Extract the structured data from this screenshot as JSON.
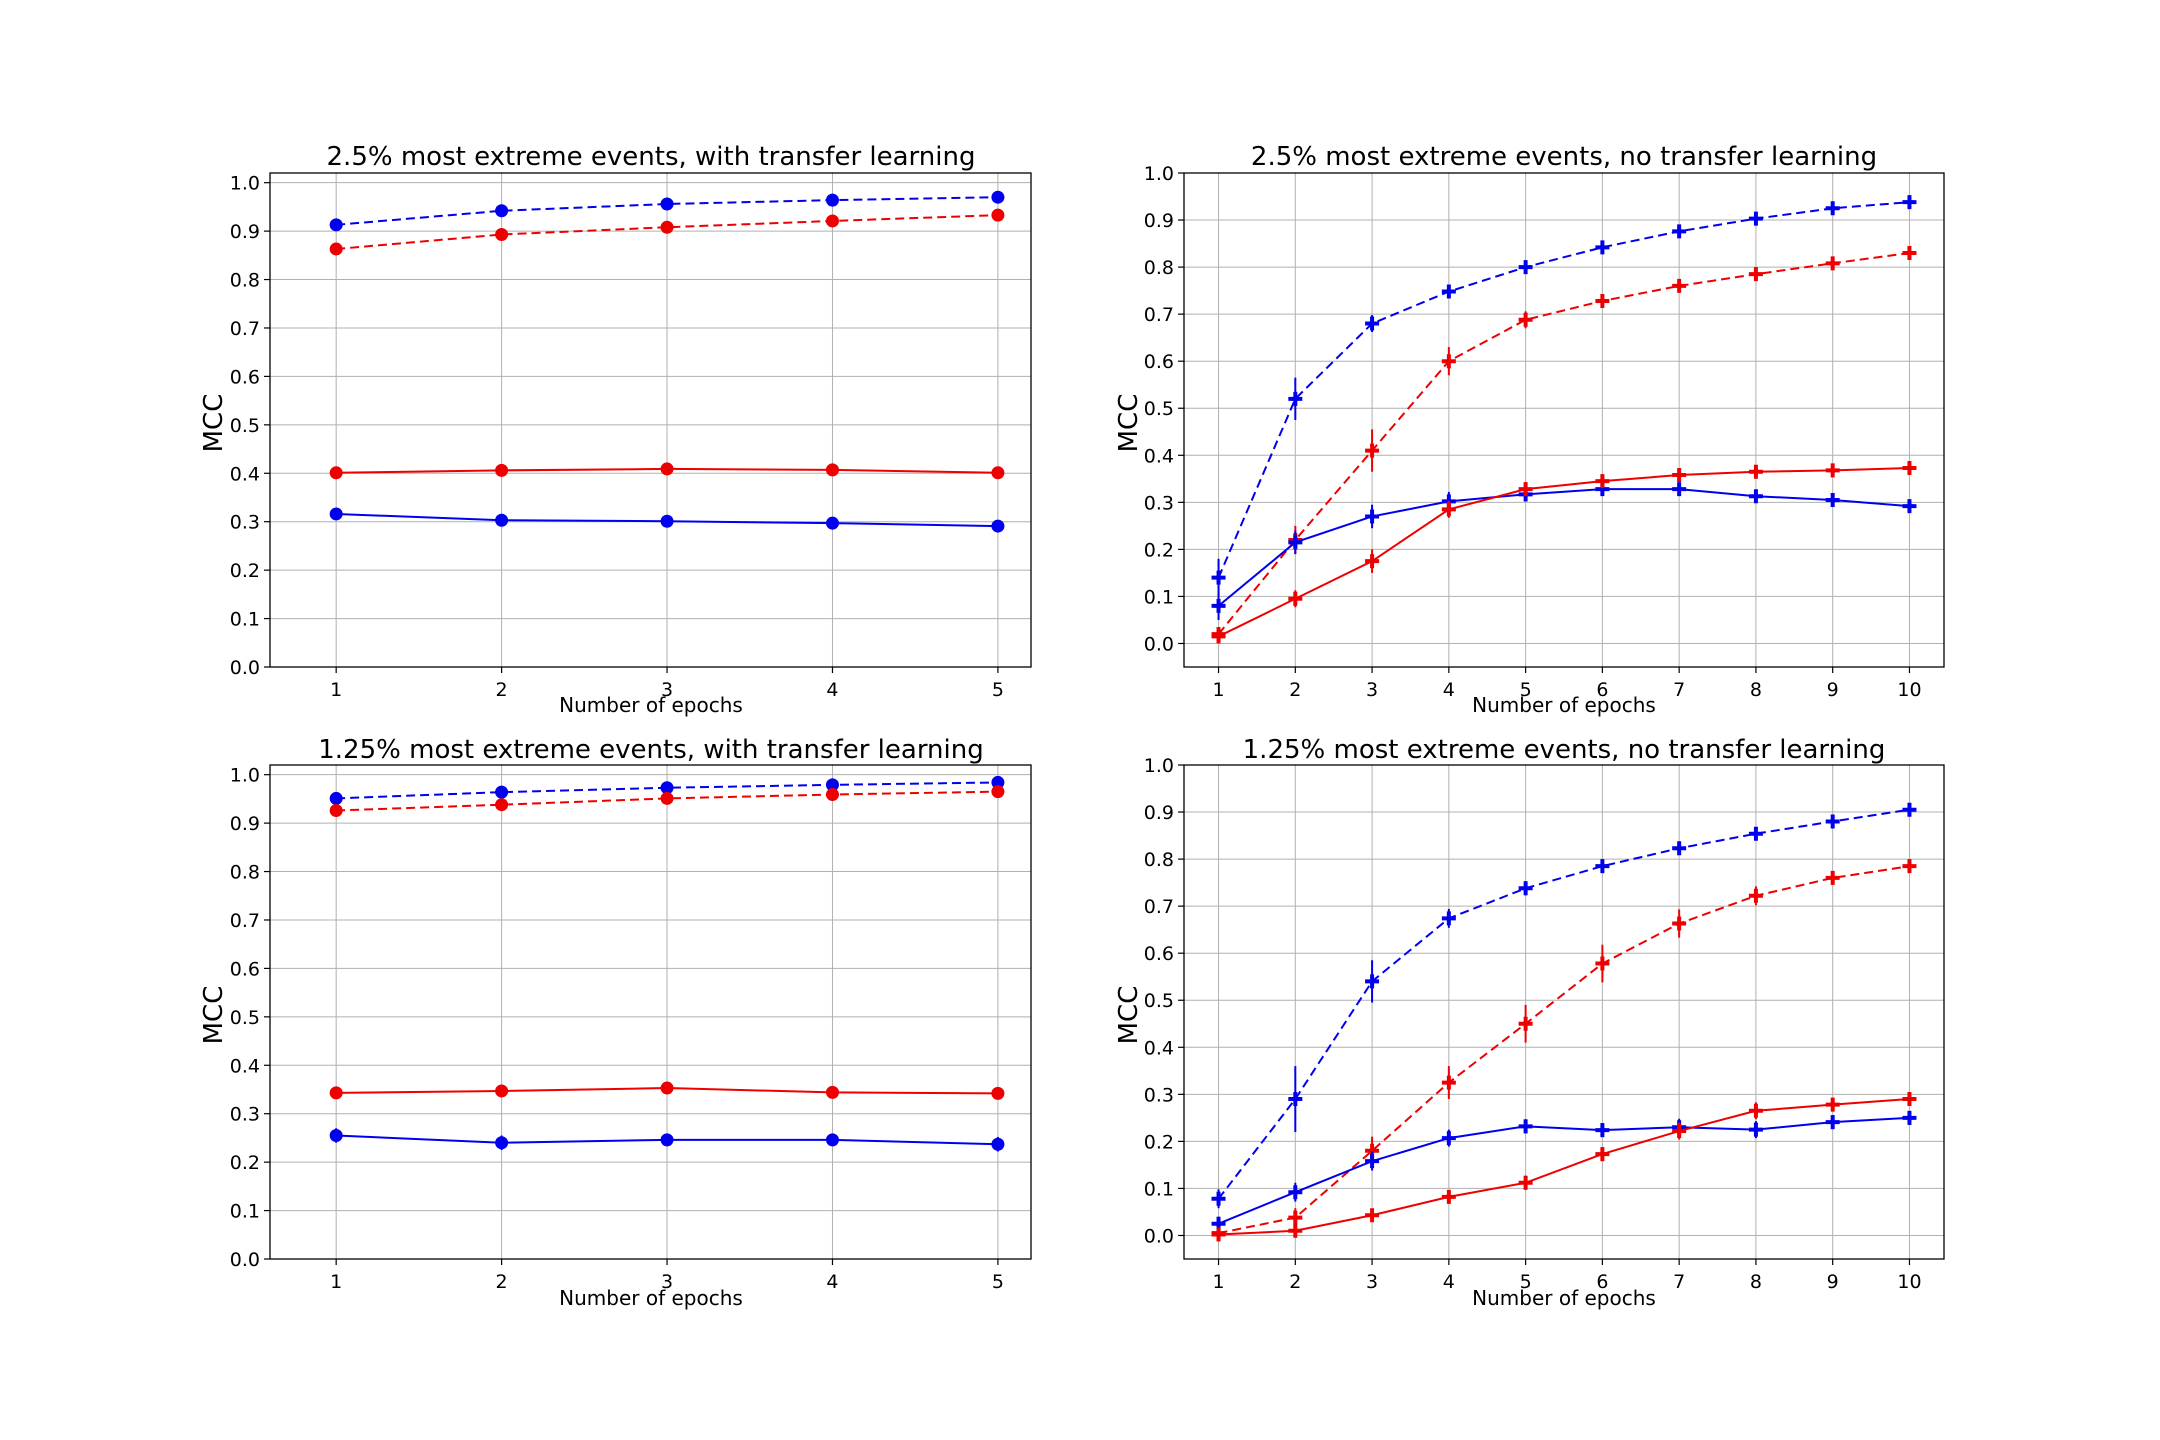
{
  "colors": {
    "series_a": "#0000ee",
    "series_b": "#ee0000",
    "grid": "#b0b0b0",
    "frame": "#000000"
  },
  "chart_data": [
    {
      "type": "line",
      "title": "2.5% most extreme events, with transfer learning",
      "xlabel": "Number of epochs",
      "ylabel": "MCC",
      "x": [
        1,
        2,
        3,
        4,
        5
      ],
      "xlim": [
        0.6,
        5.2
      ],
      "ylim": [
        0.0,
        1.02
      ],
      "yticks": [
        "0.0",
        "0.1",
        "0.2",
        "0.3",
        "0.4",
        "0.5",
        "0.6",
        "0.7",
        "0.8",
        "0.9",
        "1.0"
      ],
      "marker": "circle",
      "grid": true,
      "series": [
        {
          "name": "blue dashed",
          "color": "blue",
          "dash": true,
          "values": [
            0.913,
            0.942,
            0.956,
            0.964,
            0.97
          ],
          "err": [
            0.005,
            0.005,
            0.004,
            0.004,
            0.004
          ]
        },
        {
          "name": "red dashed",
          "color": "red",
          "dash": true,
          "values": [
            0.863,
            0.893,
            0.908,
            0.921,
            0.933
          ],
          "err": [
            0.005,
            0.005,
            0.005,
            0.004,
            0.004
          ]
        },
        {
          "name": "red solid",
          "color": "red",
          "dash": false,
          "values": [
            0.401,
            0.406,
            0.409,
            0.407,
            0.401
          ],
          "err": [
            0.006,
            0.006,
            0.006,
            0.006,
            0.006
          ]
        },
        {
          "name": "blue solid",
          "color": "blue",
          "dash": false,
          "values": [
            0.316,
            0.303,
            0.301,
            0.297,
            0.291
          ],
          "err": [
            0.007,
            0.007,
            0.007,
            0.007,
            0.007
          ]
        }
      ]
    },
    {
      "type": "line",
      "title": "2.5% most extreme events, no transfer learning",
      "xlabel": "Number of epochs",
      "ylabel": "MCC",
      "x": [
        1,
        2,
        3,
        4,
        5,
        6,
        7,
        8,
        9,
        10
      ],
      "xlim": [
        0.55,
        10.45
      ],
      "ylim": [
        -0.05,
        1.0
      ],
      "yticks": [
        "0.0",
        "0.1",
        "0.2",
        "0.3",
        "0.4",
        "0.5",
        "0.6",
        "0.7",
        "0.8",
        "0.9",
        "1.0"
      ],
      "marker": "plus",
      "grid": true,
      "series": [
        {
          "name": "blue dashed",
          "color": "blue",
          "dash": true,
          "values": [
            0.14,
            0.52,
            0.68,
            0.748,
            0.8,
            0.842,
            0.876,
            0.903,
            0.925,
            0.938
          ],
          "err": [
            0.04,
            0.045,
            0.018,
            0.012,
            0.01,
            0.008,
            0.008,
            0.007,
            0.006,
            0.006
          ]
        },
        {
          "name": "red dashed",
          "color": "red",
          "dash": true,
          "values": [
            0.02,
            0.22,
            0.41,
            0.6,
            0.688,
            0.728,
            0.76,
            0.785,
            0.808,
            0.83
          ],
          "err": [
            0.015,
            0.03,
            0.045,
            0.03,
            0.018,
            0.012,
            0.01,
            0.01,
            0.008,
            0.008
          ]
        },
        {
          "name": "blue solid",
          "color": "blue",
          "dash": false,
          "values": [
            0.08,
            0.215,
            0.27,
            0.302,
            0.317,
            0.328,
            0.328,
            0.313,
            0.305,
            0.292
          ],
          "err": [
            0.03,
            0.025,
            0.025,
            0.02,
            0.015,
            0.012,
            0.012,
            0.012,
            0.01,
            0.01
          ]
        },
        {
          "name": "red solid",
          "color": "red",
          "dash": false,
          "values": [
            0.015,
            0.095,
            0.175,
            0.285,
            0.328,
            0.345,
            0.358,
            0.365,
            0.368,
            0.373
          ],
          "err": [
            0.012,
            0.018,
            0.025,
            0.018,
            0.012,
            0.01,
            0.01,
            0.01,
            0.01,
            0.01
          ]
        }
      ]
    },
    {
      "type": "line",
      "title": "1.25% most extreme events, with transfer learning",
      "xlabel": "Number of epochs",
      "ylabel": "MCC",
      "x": [
        1,
        2,
        3,
        4,
        5
      ],
      "xlim": [
        0.6,
        5.2
      ],
      "ylim": [
        0.0,
        1.02
      ],
      "yticks": [
        "0.0",
        "0.1",
        "0.2",
        "0.3",
        "0.4",
        "0.5",
        "0.6",
        "0.7",
        "0.8",
        "0.9",
        "1.0"
      ],
      "marker": "circle",
      "grid": true,
      "series": [
        {
          "name": "blue dashed",
          "color": "blue",
          "dash": true,
          "values": [
            0.951,
            0.964,
            0.973,
            0.979,
            0.984
          ],
          "err": [
            0.004,
            0.004,
            0.004,
            0.003,
            0.003
          ]
        },
        {
          "name": "red dashed",
          "color": "red",
          "dash": true,
          "values": [
            0.926,
            0.938,
            0.951,
            0.959,
            0.965
          ],
          "err": [
            0.004,
            0.004,
            0.004,
            0.004,
            0.004
          ]
        },
        {
          "name": "red solid",
          "color": "red",
          "dash": false,
          "values": [
            0.343,
            0.347,
            0.353,
            0.344,
            0.342
          ],
          "err": [
            0.006,
            0.006,
            0.006,
            0.006,
            0.006
          ]
        },
        {
          "name": "blue solid",
          "color": "blue",
          "dash": false,
          "values": [
            0.255,
            0.24,
            0.246,
            0.246,
            0.237
          ],
          "err": [
            0.015,
            0.015,
            0.013,
            0.013,
            0.015
          ]
        }
      ]
    },
    {
      "type": "line",
      "title": "1.25% most extreme events, no transfer learning",
      "xlabel": "Number of epochs",
      "ylabel": "MCC",
      "x": [
        1,
        2,
        3,
        4,
        5,
        6,
        7,
        8,
        9,
        10
      ],
      "xlim": [
        0.55,
        10.45
      ],
      "ylim": [
        -0.05,
        1.0
      ],
      "yticks": [
        "0.0",
        "0.1",
        "0.2",
        "0.3",
        "0.4",
        "0.5",
        "0.6",
        "0.7",
        "0.8",
        "0.9",
        "1.0"
      ],
      "marker": "plus",
      "grid": true,
      "series": [
        {
          "name": "blue dashed",
          "color": "blue",
          "dash": true,
          "values": [
            0.078,
            0.29,
            0.54,
            0.674,
            0.738,
            0.785,
            0.823,
            0.854,
            0.88,
            0.905
          ],
          "err": [
            0.02,
            0.07,
            0.045,
            0.02,
            0.015,
            0.012,
            0.012,
            0.01,
            0.01,
            0.01
          ]
        },
        {
          "name": "red dashed",
          "color": "red",
          "dash": true,
          "values": [
            0.005,
            0.038,
            0.18,
            0.325,
            0.45,
            0.578,
            0.663,
            0.722,
            0.76,
            0.785
          ],
          "err": [
            0.005,
            0.02,
            0.03,
            0.035,
            0.04,
            0.04,
            0.03,
            0.02,
            0.012,
            0.01
          ]
        },
        {
          "name": "blue solid",
          "color": "blue",
          "dash": false,
          "values": [
            0.025,
            0.092,
            0.158,
            0.207,
            0.232,
            0.224,
            0.23,
            0.225,
            0.241,
            0.25
          ],
          "err": [
            0.015,
            0.02,
            0.02,
            0.018,
            0.015,
            0.015,
            0.018,
            0.018,
            0.015,
            0.015
          ]
        },
        {
          "name": "red solid",
          "color": "red",
          "dash": false,
          "values": [
            0.002,
            0.01,
            0.043,
            0.082,
            0.112,
            0.173,
            0.222,
            0.265,
            0.278,
            0.29
          ],
          "err": [
            0.005,
            0.008,
            0.01,
            0.012,
            0.015,
            0.015,
            0.018,
            0.018,
            0.012,
            0.012
          ]
        }
      ]
    }
  ]
}
